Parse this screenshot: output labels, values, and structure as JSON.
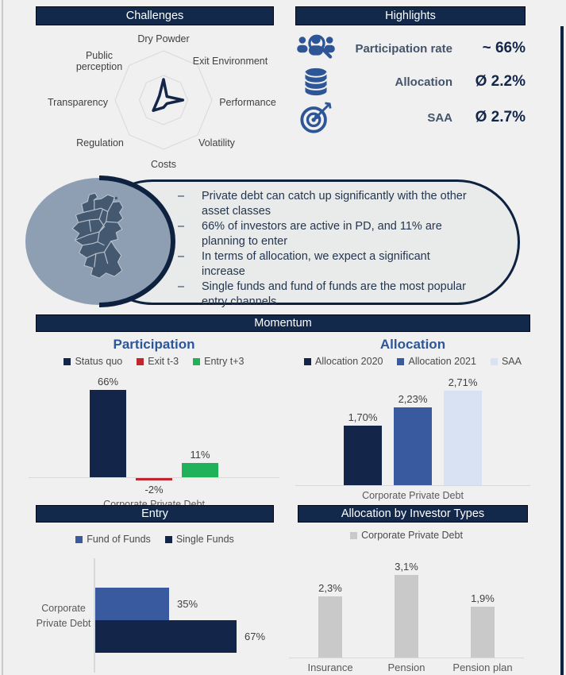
{
  "sections": {
    "challenges": "Challenges",
    "highlights": "Highlights",
    "momentum": "Momentum",
    "entry": "Entry",
    "investor_types": "Allocation by Investor Types"
  },
  "colors": {
    "navy": "#13264A",
    "banner_navy": "#12294C",
    "title_blue": "#2D5699",
    "medium_blue": "#3A5A9F",
    "light_blue": "#D9E2F2",
    "red": "#C0262D",
    "green": "#1FB259",
    "gray_bar": "#C9C9C9",
    "icon_blue": "#2E5596",
    "ellipse_fill": "#8F9FB3",
    "map_state_fill": "#44586F"
  },
  "highlights": {
    "rows": [
      {
        "icon": "people-magnifier-icon",
        "label": "Participation rate",
        "value": "~ 66%"
      },
      {
        "icon": "database-icon",
        "label": "Allocation",
        "value": "Ø 2.2%"
      },
      {
        "icon": "target-icon",
        "label": "SAA",
        "value": "Ø 2.7%"
      }
    ]
  },
  "summary": {
    "bullet_marker": "–",
    "bullets": [
      "Private debt can catch up significantly with the other asset classes",
      "66% of investors are active in PD, and 11% are planning to enter",
      "In terms of allocation, we expect a significant increase",
      "Single funds and fund of funds are the most popular entry channels"
    ]
  },
  "chart_data": [
    {
      "type": "radar",
      "title": "Challenges",
      "axes": [
        "Dry Powder",
        "Exit Environment",
        "Performance",
        "Volatility",
        "Costs",
        "Regulation",
        "Transparency",
        "Public perception"
      ],
      "values": [
        0.42,
        0.1,
        0.4,
        0.1,
        0.15,
        0.3,
        0.12,
        0.12
      ],
      "value_scale": "fraction of outer ring (no tick labels shown; estimated)",
      "rings": [
        0.5,
        1.0
      ],
      "grid": true,
      "legend_position": "none"
    },
    {
      "type": "bar",
      "title": "Participation",
      "categories": [
        "Corporate Private Debt"
      ],
      "series": [
        {
          "name": "Status quo",
          "color": "#13264A",
          "values": [
            66
          ],
          "display": [
            "66%"
          ]
        },
        {
          "name": "Exit t-3",
          "color": "#C0262D",
          "values": [
            -2
          ],
          "display": [
            "-2%"
          ]
        },
        {
          "name": "Entry t+3",
          "color": "#1FB259",
          "values": [
            11
          ],
          "display": [
            "11%"
          ]
        }
      ],
      "ylabel": "",
      "ylim": [
        -2,
        66
      ],
      "legend_position": "top"
    },
    {
      "type": "bar",
      "title": "Allocation",
      "categories": [
        "Corporate Private Debt"
      ],
      "series": [
        {
          "name": "Allocation 2020",
          "color": "#13264A",
          "values": [
            1.7
          ],
          "display": [
            "1,70%"
          ]
        },
        {
          "name": "Allocation 2021",
          "color": "#3A5A9F",
          "values": [
            2.23
          ],
          "display": [
            "2,23%"
          ]
        },
        {
          "name": "SAA",
          "color": "#D9E2F2",
          "values": [
            2.71
          ],
          "display": [
            "2,71%"
          ]
        }
      ],
      "ylabel": "",
      "ylim": [
        0,
        2.71
      ],
      "legend_position": "top"
    },
    {
      "type": "hbar",
      "title": "Entry",
      "categories": [
        "Corporate Private Debt"
      ],
      "series": [
        {
          "name": "Fund of Funds",
          "color": "#3A5A9F",
          "values": [
            35
          ],
          "display": [
            "35%"
          ]
        },
        {
          "name": "Single Funds",
          "color": "#13264A",
          "values": [
            67
          ],
          "display": [
            "67%"
          ]
        }
      ],
      "xlim": [
        0,
        67
      ],
      "legend_position": "top"
    },
    {
      "type": "bar",
      "title": "Allocation by Investor Types",
      "categories": [
        "Insurance",
        "Pension scheme",
        "Pension plan"
      ],
      "series": [
        {
          "name": "Corporate Private Debt",
          "color": "#C9C9C9",
          "values": [
            2.3,
            3.1,
            1.9
          ],
          "display": [
            "2,3%",
            "3,1%",
            "1,9%"
          ]
        }
      ],
      "ylim": [
        0,
        3.1
      ],
      "legend_position": "top"
    }
  ]
}
